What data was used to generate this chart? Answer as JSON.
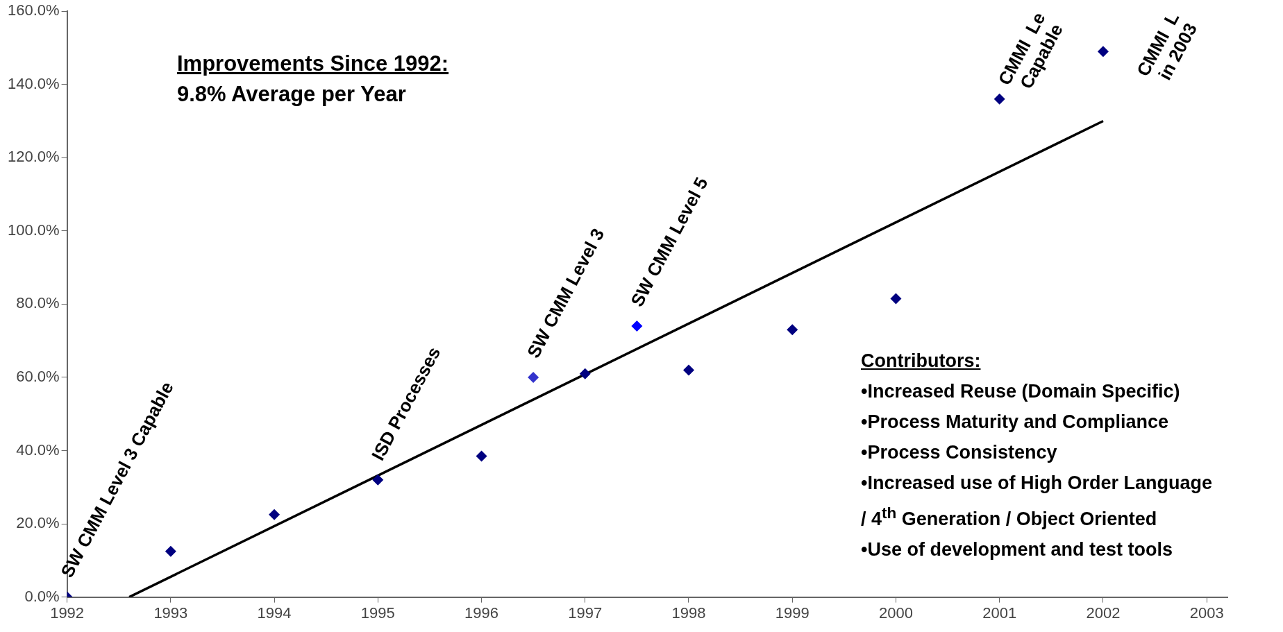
{
  "chart_data": {
    "type": "scatter",
    "marker": "diamond",
    "grid": false,
    "legend": false,
    "xlim": [
      1992,
      2003.2
    ],
    "xticks": [
      1992,
      1993,
      1994,
      1995,
      1996,
      1997,
      1998,
      1999,
      2000,
      2001,
      2002,
      2003
    ],
    "ylim": [
      0,
      160
    ],
    "yticks": [
      {
        "value": 0,
        "label": "0.0%"
      },
      {
        "value": 20,
        "label": "20.0%"
      },
      {
        "value": 40,
        "label": "40.0%"
      },
      {
        "value": 60,
        "label": "60.0%"
      },
      {
        "value": 80,
        "label": "80.0%"
      },
      {
        "value": 100,
        "label": "100.0%"
      },
      {
        "value": 120,
        "label": "120.0%"
      },
      {
        "value": 140,
        "label": "140.0%"
      },
      {
        "value": 160,
        "label": "160.0%"
      }
    ],
    "series": [
      {
        "type": "scatter",
        "x": [
          1992,
          1993,
          1994,
          1995,
          1996,
          1996.5,
          1997,
          1997.5,
          1998,
          1999,
          2000,
          2001,
          2002
        ],
        "values": [
          0,
          12.5,
          22.5,
          32,
          38.5,
          60,
          61,
          74,
          62,
          73,
          81.5,
          136,
          149
        ],
        "colors": [
          "#000080",
          "#000080",
          "#000080",
          "#000080",
          "#000080",
          "#3333cc",
          "#000080",
          "#0000ff",
          "#000080",
          "#000080",
          "#000080",
          "#000080",
          "#000080"
        ]
      },
      {
        "type": "line",
        "x": [
          1992.6,
          2002
        ],
        "values": [
          0,
          130
        ],
        "color": "#000000",
        "marker": "none"
      }
    ],
    "annotations": [
      "Improvements Since 1992:",
      "9.8% Average per Year",
      "Contributors:",
      "•Increased Reuse (Domain Specific)",
      "•Process Maturity and Compliance",
      "•Process Consistency",
      "•Increased use of High Order Language",
      " / 4$^{th}$ Generation / Object Oriented",
      "•Use of development and test tools",
      {
        "text": "SW CMM Level 3 Capable",
        "x": 1992,
        "y": 0
      },
      {
        "text": "ISD Processes",
        "x": 1995,
        "y": 32
      },
      {
        "text": "SW CMM Level 3",
        "x": 1996.5,
        "y": 60
      },
      {
        "text": "SW CMM Level 5",
        "x": 1997.5,
        "y": 74
      },
      {
        "text": "CMMI  Le\nCapable",
        "x": 2001,
        "y": 136
      },
      {
        "text": "CMMI  L\nin 2003",
        "x": 2002,
        "y": 149
      }
    ]
  }
}
